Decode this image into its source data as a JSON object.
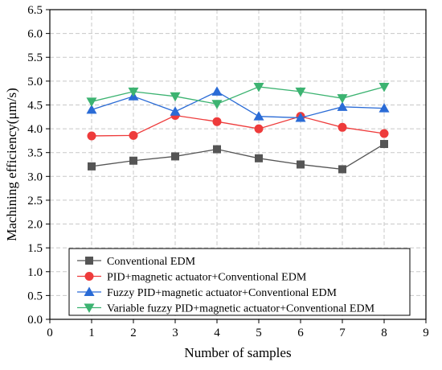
{
  "chart_data": {
    "type": "line",
    "xlabel": "Number of samples",
    "ylabel": "Machining efficiency(μm/s)",
    "xlim": [
      0,
      9
    ],
    "ylim": [
      0.0,
      6.5
    ],
    "xticks": [
      "0",
      "1",
      "2",
      "3",
      "4",
      "5",
      "6",
      "7",
      "8",
      "9"
    ],
    "yticks": [
      "0.0",
      "0.5",
      "1.0",
      "1.5",
      "2.0",
      "2.5",
      "3.0",
      "3.5",
      "4.0",
      "4.5",
      "5.0",
      "5.5",
      "6.0",
      "6.5"
    ],
    "grid": true,
    "legend_position": "bottom-left",
    "x": [
      1,
      2,
      3,
      4,
      5,
      6,
      7,
      8
    ],
    "series": [
      {
        "name": "Conventional EDM",
        "values": [
          3.21,
          3.33,
          3.42,
          3.57,
          3.38,
          3.25,
          3.15,
          3.68
        ],
        "color": "#555555",
        "marker": "square"
      },
      {
        "name": "PID+magnetic actuator+Conventional EDM",
        "values": [
          3.85,
          3.86,
          4.28,
          4.15,
          4.0,
          4.26,
          4.03,
          3.9
        ],
        "color": "#ee3b3b",
        "marker": "circle"
      },
      {
        "name": "Fuzzy PID+magnetic actuator+Conventional EDM",
        "values": [
          4.4,
          4.68,
          4.36,
          4.78,
          4.26,
          4.23,
          4.46,
          4.43
        ],
        "color": "#2a6bd6",
        "marker": "triangle-up"
      },
      {
        "name": "Variable fuzzy PID+magnetic actuator+Conventional EDM",
        "values": [
          4.57,
          4.78,
          4.68,
          4.52,
          4.88,
          4.78,
          4.64,
          4.88
        ],
        "color": "#3cb371",
        "marker": "triangle-down"
      }
    ]
  }
}
